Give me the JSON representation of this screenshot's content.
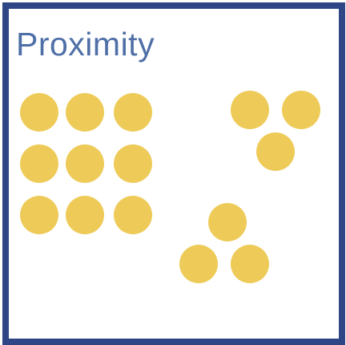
{
  "diagram": {
    "title": "Proximity",
    "dot_color": "#eecb58",
    "frame_color": "#2e4686",
    "title_color": "#4f6fa7",
    "groups": [
      {
        "id": "grid",
        "dot_count": 9
      },
      {
        "id": "triangle-top-right",
        "dot_count": 3
      },
      {
        "id": "triangle-bottom",
        "dot_count": 3
      }
    ]
  }
}
